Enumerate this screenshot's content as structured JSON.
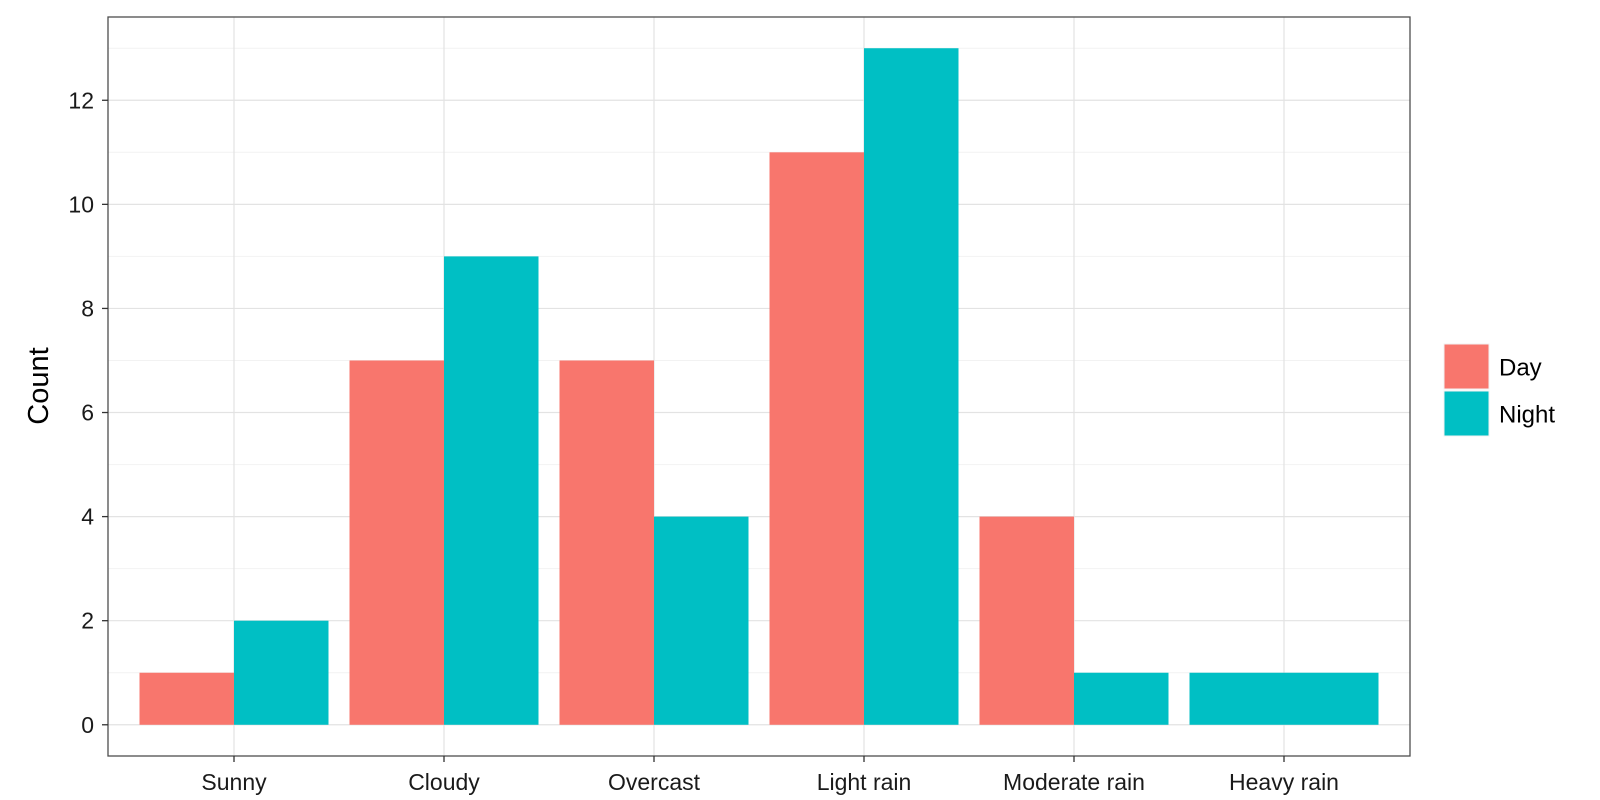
{
  "chart_data": {
    "type": "bar",
    "categories": [
      "Sunny",
      "Cloudy",
      "Overcast",
      "Light rain",
      "Moderate rain",
      "Heavy rain"
    ],
    "series": [
      {
        "name": "Day",
        "color": "#F8766D",
        "values": [
          1,
          7,
          7,
          11,
          4,
          0
        ]
      },
      {
        "name": "Night",
        "color": "#00BFC4",
        "values": [
          2,
          9,
          4,
          13,
          1,
          1
        ]
      }
    ],
    "title": "",
    "xlabel": "",
    "ylabel": "Count",
    "ylim": [
      -0.6,
      13.6
    ],
    "yticks": [
      "0",
      "2",
      "4",
      "6",
      "8",
      "10",
      "12"
    ],
    "grid": true,
    "legend_position": "right",
    "dodge_note_hidden": false
  }
}
